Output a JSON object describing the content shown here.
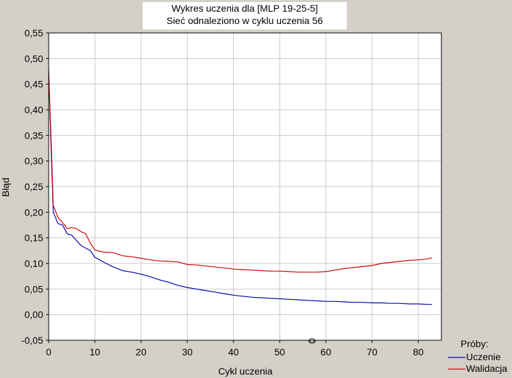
{
  "chart_data": {
    "type": "line",
    "title": "Wykres uczenia dla [MLP 19-25-5]",
    "subtitle": "Sieć odnaleziono w cyklu uczenia 56",
    "xlabel": "Cykl uczenia",
    "ylabel": "Błąd",
    "xlim": [
      0,
      85
    ],
    "ylim": [
      -0.05,
      0.55
    ],
    "x_ticks": [
      0,
      10,
      20,
      30,
      40,
      50,
      60,
      70,
      80
    ],
    "x_tick_labels": [
      "0",
      "10",
      "20",
      "30",
      "40",
      "50",
      "60",
      "70",
      "80"
    ],
    "y_ticks": [
      -0.05,
      0.0,
      0.05,
      0.1,
      0.15,
      0.2,
      0.25,
      0.3,
      0.35,
      0.4,
      0.45,
      0.5,
      0.55
    ],
    "y_tick_labels": [
      "-0,05",
      "0,00",
      "0,05",
      "0,10",
      "0,15",
      "0,20",
      "0,25",
      "0,30",
      "0,35",
      "0,40",
      "0,45",
      "0,50",
      "0,55"
    ],
    "grid": true,
    "legend_title": "Próby:",
    "legend_position": "bottom-right",
    "marker": {
      "x": 57,
      "y": -0.05
    },
    "series": [
      {
        "name": "Uczenie",
        "color": "#0000aa",
        "x": [
          0,
          0.5,
          1,
          2,
          3,
          4,
          5,
          6,
          7,
          8,
          9,
          10,
          12,
          14,
          16,
          18,
          20,
          22,
          24,
          26,
          28,
          30,
          32,
          34,
          36,
          38,
          40,
          42,
          44,
          46,
          48,
          50,
          52,
          54,
          56,
          58,
          60,
          62,
          64,
          66,
          68,
          70,
          72,
          74,
          76,
          78,
          80,
          82,
          83
        ],
        "y": [
          0.48,
          0.33,
          0.2,
          0.178,
          0.175,
          0.158,
          0.155,
          0.145,
          0.135,
          0.13,
          0.125,
          0.112,
          0.102,
          0.093,
          0.086,
          0.083,
          0.079,
          0.074,
          0.068,
          0.063,
          0.057,
          0.053,
          0.05,
          0.047,
          0.044,
          0.041,
          0.038,
          0.036,
          0.034,
          0.033,
          0.032,
          0.031,
          0.03,
          0.029,
          0.028,
          0.027,
          0.026,
          0.026,
          0.025,
          0.024,
          0.024,
          0.023,
          0.023,
          0.022,
          0.022,
          0.021,
          0.021,
          0.02,
          0.02
        ]
      },
      {
        "name": "Walidacja",
        "color": "#cc0000",
        "x": [
          0,
          0.5,
          1,
          2,
          3,
          4,
          5,
          6,
          7,
          8,
          9,
          10,
          12,
          14,
          16,
          18,
          20,
          22,
          24,
          26,
          28,
          30,
          32,
          34,
          36,
          38,
          40,
          42,
          44,
          46,
          48,
          50,
          52,
          54,
          56,
          58,
          60,
          62,
          64,
          66,
          68,
          70,
          72,
          74,
          76,
          78,
          80,
          82,
          83
        ],
        "y": [
          0.47,
          0.35,
          0.213,
          0.19,
          0.18,
          0.168,
          0.17,
          0.168,
          0.162,
          0.158,
          0.14,
          0.126,
          0.122,
          0.121,
          0.115,
          0.113,
          0.11,
          0.107,
          0.105,
          0.104,
          0.103,
          0.098,
          0.097,
          0.095,
          0.093,
          0.091,
          0.089,
          0.088,
          0.087,
          0.086,
          0.085,
          0.085,
          0.084,
          0.083,
          0.083,
          0.083,
          0.084,
          0.087,
          0.09,
          0.092,
          0.094,
          0.096,
          0.1,
          0.102,
          0.104,
          0.106,
          0.107,
          0.109,
          0.111
        ]
      }
    ]
  },
  "colors": {
    "background": "#d4d0c8",
    "plot_background": "#ffffff",
    "grid": "#c8c8c8"
  }
}
